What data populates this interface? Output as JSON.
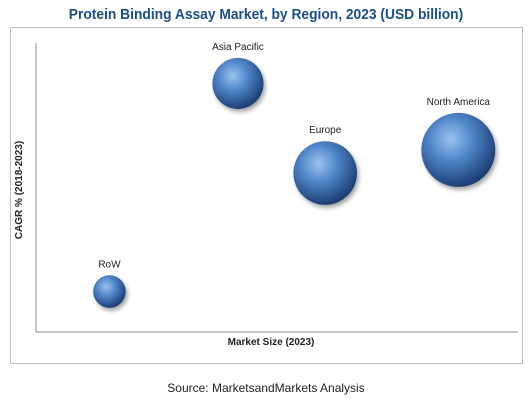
{
  "chart_data": {
    "type": "bubble",
    "title": "Protein Binding Assay Market, by Region, 2023 (USD billion)",
    "xlabel": "Market Size (2023)",
    "ylabel": "CAGR % (2018-2023)",
    "axis_ticks": false,
    "grid": false,
    "legend": "none",
    "bubble_color": "#3a6fb5",
    "points": [
      {
        "label": "Asia Pacific",
        "x": 0.44,
        "y": 0.86,
        "size": 0.69
      },
      {
        "label": "North America",
        "x": 0.92,
        "y": 0.63,
        "size": 1.0
      },
      {
        "label": "Europe",
        "x": 0.63,
        "y": 0.55,
        "size": 0.86
      },
      {
        "label": "RoW",
        "x": 0.16,
        "y": 0.14,
        "size": 0.44
      }
    ],
    "xlim": [
      0,
      1.05
    ],
    "ylim": [
      0,
      1.0
    ]
  },
  "source": "Source: MarketsandMarkets Analysis"
}
